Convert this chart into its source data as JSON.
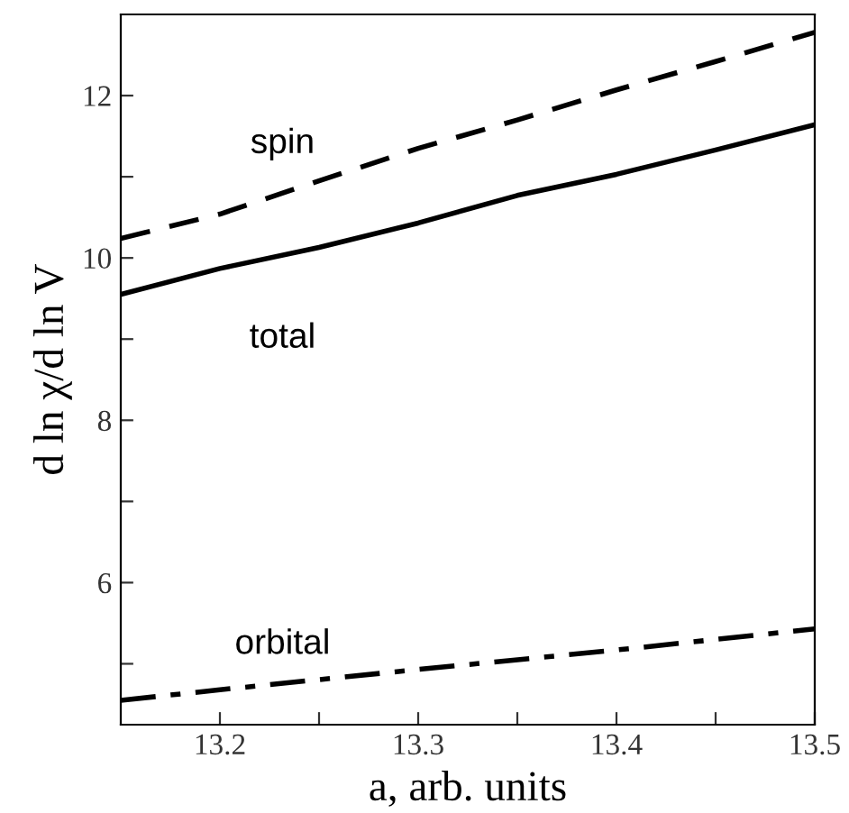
{
  "chart_data": {
    "type": "line",
    "xlabel": "a, arb. units",
    "ylabel": "d ln χ/d ln V",
    "xlim": [
      13.15,
      13.5
    ],
    "ylim": [
      4.25,
      13
    ],
    "xticks": [
      13.2,
      {
        "value": 13.25,
        "label": null
      },
      13.3,
      {
        "value": 13.35,
        "label": null
      },
      13.4,
      {
        "value": 13.45,
        "label": null
      },
      13.5
    ],
    "yticks": [
      {
        "value": 5,
        "label": null
      },
      6,
      {
        "value": 7,
        "label": null
      },
      8,
      {
        "value": 9,
        "label": null
      },
      10,
      {
        "value": 11,
        "label": null
      },
      12
    ],
    "grid": false,
    "legend": false,
    "marker": "none",
    "series": [
      {
        "name": "spin",
        "color": "#000000",
        "line_style": "dashed",
        "x": [
          13.15,
          13.2,
          13.25,
          13.3,
          13.35,
          13.4,
          13.45,
          13.5
        ],
        "values": [
          10.24,
          10.54,
          10.95,
          11.35,
          11.7,
          12.07,
          12.42,
          12.78
        ]
      },
      {
        "name": "total",
        "color": "#000000",
        "line_style": "solid",
        "x": [
          13.15,
          13.2,
          13.25,
          13.3,
          13.35,
          13.4,
          13.45,
          13.5
        ],
        "values": [
          9.55,
          9.87,
          10.13,
          10.43,
          10.77,
          11.03,
          11.33,
          11.64
        ]
      },
      {
        "name": "orbital",
        "color": "#000000",
        "line_style": "dashdot",
        "x": [
          13.15,
          13.2,
          13.3,
          13.4,
          13.5
        ],
        "values": [
          4.55,
          4.68,
          4.93,
          5.17,
          5.43
        ]
      }
    ]
  }
}
